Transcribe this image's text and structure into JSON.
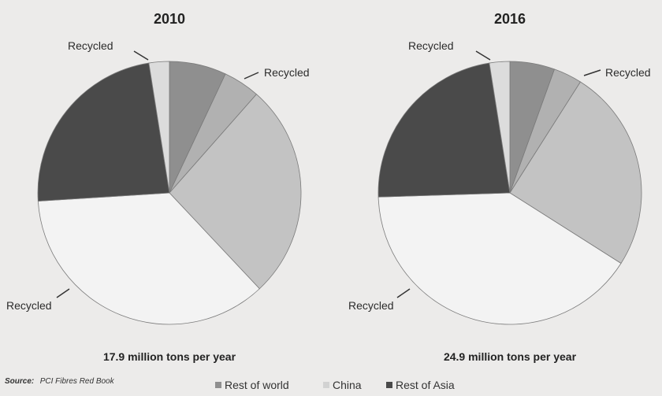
{
  "chart_data": [
    {
      "type": "pie",
      "title": "2010",
      "caption": "17.9 million tons per year",
      "slices": [
        {
          "label": "Rest of world",
          "value": 7.0,
          "color": "#8f8f8f"
        },
        {
          "label": "Recycled",
          "value": 4.5,
          "color": "#b1b1b1"
        },
        {
          "label": "China",
          "value": 26.5,
          "color": "#c3c3c3"
        },
        {
          "label": "Recycled",
          "value": 36.0,
          "color": "#f3f3f3"
        },
        {
          "label": "Rest of Asia",
          "value": 23.5,
          "color": "#4a4a4a"
        },
        {
          "label": "Recycled",
          "value": 2.5,
          "color": "#dcdcdc"
        }
      ]
    },
    {
      "type": "pie",
      "title": "2016",
      "caption": "24.9 million tons per year",
      "slices": [
        {
          "label": "Rest of world",
          "value": 5.5,
          "color": "#8f8f8f"
        },
        {
          "label": "Recycled",
          "value": 3.5,
          "color": "#b1b1b1"
        },
        {
          "label": "China",
          "value": 25.0,
          "color": "#c3c3c3"
        },
        {
          "label": "Recycled",
          "value": 40.5,
          "color": "#f3f3f3"
        },
        {
          "label": "Rest of Asia",
          "value": 23.0,
          "color": "#4a4a4a"
        },
        {
          "label": "Recycled",
          "value": 2.5,
          "color": "#dcdcdc"
        }
      ]
    }
  ],
  "callout_label": "Recycled",
  "source": {
    "label": "Source:",
    "text": "PCI Fibres Red Book"
  },
  "legend": [
    {
      "label": "Rest of world",
      "color": "#8f8f8f"
    },
    {
      "label": "China",
      "color": "#d2d2d2"
    },
    {
      "label": "Rest of Asia",
      "color": "#4a4a4a"
    }
  ]
}
